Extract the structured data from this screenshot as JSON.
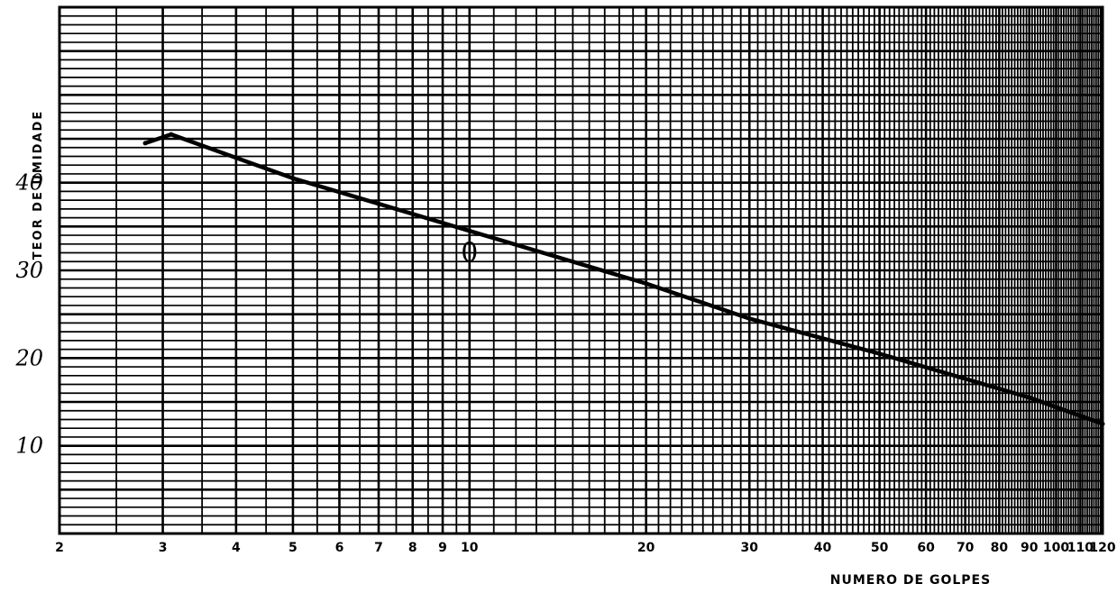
{
  "chart_data": {
    "type": "line",
    "xlabel": "NUMERO DE GOLPES",
    "ylabel": "TEOR DE UMIDADE",
    "x_scale": "log",
    "xlim": [
      2,
      120
    ],
    "ylim": [
      0,
      60
    ],
    "x_ticks": [
      "2",
      "3",
      "4",
      "5",
      "6",
      "7",
      "8",
      "9",
      "10",
      "20",
      "30",
      "40",
      "50",
      "60",
      "70",
      "80",
      "90",
      "100",
      "110",
      "120"
    ],
    "y_ticks": [
      "10",
      "20",
      "30",
      "40"
    ],
    "grid": true,
    "series": [
      {
        "x": [
          2.8,
          3.1,
          5,
          10,
          20,
          30,
          50,
          90,
          120
        ],
        "y": [
          44.5,
          45.5,
          40.5,
          34.5,
          28.5,
          24.5,
          20.5,
          15.5,
          12.5
        ]
      }
    ],
    "annotations": [
      {
        "text": "0",
        "x": 10,
        "y": 31
      }
    ]
  }
}
